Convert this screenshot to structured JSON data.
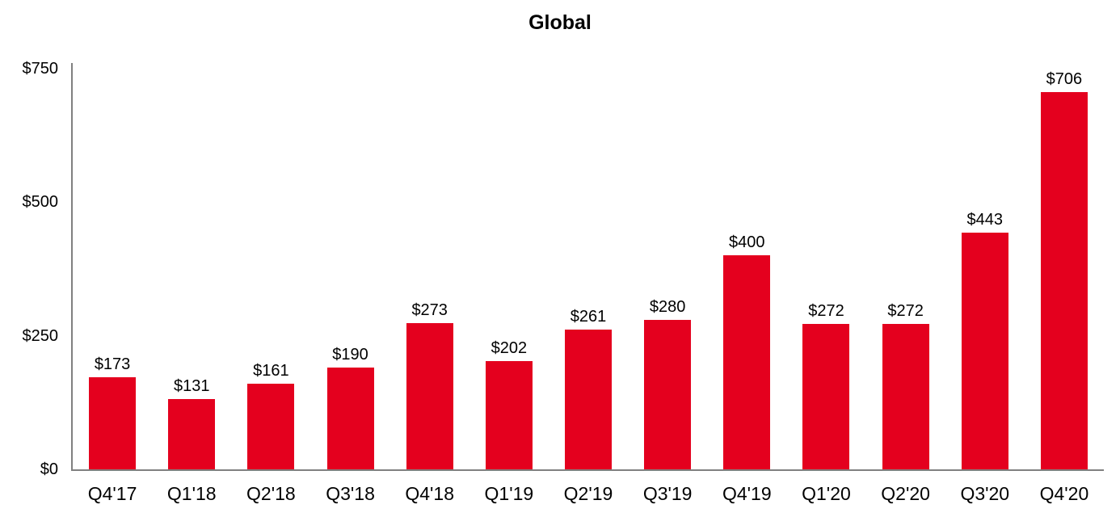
{
  "chart_data": {
    "type": "bar",
    "title": "Global",
    "categories": [
      "Q4'17",
      "Q1'18",
      "Q2'18",
      "Q3'18",
      "Q4'18",
      "Q1'19",
      "Q2'19",
      "Q3'19",
      "Q4'19",
      "Q1'20",
      "Q2'20",
      "Q3'20",
      "Q4'20"
    ],
    "values": [
      173,
      131,
      161,
      190,
      273,
      202,
      261,
      280,
      400,
      272,
      272,
      443,
      706
    ],
    "value_labels": [
      "$173",
      "$131",
      "$161",
      "$190",
      "$273",
      "$202",
      "$261",
      "$280",
      "$400",
      "$272",
      "$272",
      "$443",
      "$706"
    ],
    "xlabel": "",
    "ylabel": "",
    "ylim": [
      0,
      750
    ],
    "yticks": [
      {
        "value": 0,
        "label": "$0"
      },
      {
        "value": 250,
        "label": "$250"
      },
      {
        "value": 500,
        "label": "$500"
      },
      {
        "value": 750,
        "label": "$750"
      }
    ],
    "grid": "off",
    "legend": "none",
    "bar_color": "#e4001e",
    "axis_color": "#808080",
    "text_color": "#000000",
    "background_color": "#ffffff"
  }
}
